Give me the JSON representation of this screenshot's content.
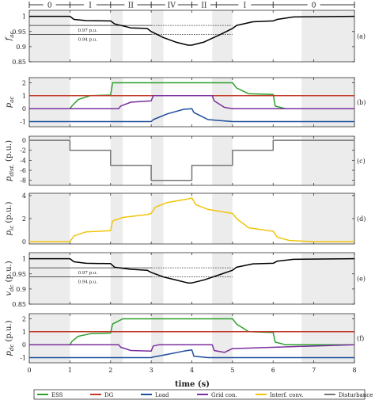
{
  "figure": {
    "xlabel": "time (s)",
    "xticks": [
      "0",
      "1",
      "2",
      "3",
      "4",
      "5",
      "6",
      "7",
      "8"
    ],
    "xlim": [
      0,
      8
    ],
    "mode_strip": {
      "labels": [
        "0",
        "I",
        "II",
        "IV",
        "II",
        "I",
        "0"
      ],
      "colors": [
        "#333333",
        "#2ca02c",
        "#5b3aa0",
        "#5b3aa0",
        "#5b3aa0",
        "#2ca02c",
        "#333333"
      ]
    },
    "legend": [
      {
        "name": "ESS",
        "color": "#2ca02c"
      },
      {
        "name": "DG",
        "color": "#c0392b"
      },
      {
        "name": "Load",
        "color": "#1f4e9c"
      },
      {
        "name": "Grid con.",
        "color": "#7b2fa0"
      },
      {
        "name": "Interf. conv.",
        "color": "#f1c40f"
      },
      {
        "name": "Disturbance",
        "color": "#777777"
      }
    ]
  },
  "chart_data": [
    {
      "type": "line",
      "panel_tag": "(a)",
      "ylabel": "f_ac",
      "ylabel_sub": "ac",
      "ylabel_main": "f",
      "ylim": [
        0.85,
        1.02
      ],
      "yticks": [
        "1",
        "0.95",
        "0.9",
        "0.85"
      ],
      "ref_lines": [
        {
          "value": 0.97,
          "label": "0.97 p.u."
        },
        {
          "value": 0.94,
          "label": "0.94 p.u."
        }
      ],
      "series": [
        {
          "color": "#000000",
          "x": [
            0,
            1,
            1.1,
            1.4,
            1.9,
            2.0,
            2.1,
            2.5,
            2.9,
            3.0,
            3.3,
            3.6,
            3.9,
            4.0,
            4.3,
            4.7,
            5.0,
            5.1,
            5.5,
            6.0,
            6.1,
            6.5,
            8
          ],
          "y": [
            1,
            1,
            0.99,
            0.986,
            0.985,
            0.985,
            0.975,
            0.962,
            0.96,
            0.95,
            0.93,
            0.915,
            0.905,
            0.905,
            0.915,
            0.94,
            0.96,
            0.97,
            0.982,
            0.985,
            0.99,
            0.998,
            1
          ]
        }
      ]
    },
    {
      "type": "line",
      "panel_tag": "(b)",
      "ylabel_main": "p",
      "ylabel_sub": "ac",
      "ylim": [
        -1.4,
        2.4
      ],
      "yticks": [
        "2",
        "1",
        "0",
        "-1"
      ],
      "series": [
        {
          "name": "ESS",
          "color": "#2ca02c",
          "x": [
            0,
            1,
            1.05,
            1.2,
            1.5,
            2.0,
            2.05,
            2.2,
            5.0,
            5.1,
            5.4,
            6.0,
            6.05,
            6.3,
            8
          ],
          "y": [
            0,
            0,
            0.2,
            0.7,
            1.0,
            1.05,
            2,
            2,
            2,
            1.6,
            1.15,
            1.1,
            0.2,
            0,
            0
          ]
        },
        {
          "name": "DG",
          "color": "#c0392b",
          "x": [
            0,
            8
          ],
          "y": [
            1,
            1
          ]
        },
        {
          "name": "Grid con.",
          "color": "#7b2fa0",
          "x": [
            0,
            2.2,
            2.25,
            2.5,
            3.0,
            3.05,
            3.2,
            4.5,
            4.55,
            4.8,
            5.0,
            8
          ],
          "y": [
            0,
            0,
            0.2,
            0.5,
            0.6,
            1,
            1,
            1,
            0.6,
            0.1,
            0,
            0
          ]
        },
        {
          "name": "Load",
          "color": "#1f4e9c",
          "x": [
            0,
            3.0,
            3.05,
            3.4,
            3.8,
            4.0,
            4.05,
            4.4,
            5.0,
            8
          ],
          "y": [
            -1,
            -1,
            -0.85,
            -0.4,
            -0.05,
            0,
            -0.3,
            -0.85,
            -1,
            -1
          ]
        }
      ]
    },
    {
      "type": "line",
      "panel_tag": "(c)",
      "ylabel_main": "p",
      "ylabel_sub": "dist.",
      "ylabel_unit": "(p.u.)",
      "ylim": [
        -9,
        0.8
      ],
      "yticks": [
        "0",
        "-2",
        "-4",
        "-6",
        "-8"
      ],
      "series": [
        {
          "name": "Disturbance",
          "color": "#777777",
          "x": [
            0,
            1,
            1,
            2,
            2,
            3,
            3,
            4,
            4,
            5,
            5,
            6,
            6,
            8
          ],
          "y": [
            0,
            0,
            -2,
            -2,
            -5,
            -5,
            -8,
            -8,
            -5,
            -5,
            -2,
            -2,
            0,
            0
          ]
        }
      ]
    },
    {
      "type": "line",
      "panel_tag": "(d)",
      "ylabel_main": "p",
      "ylabel_sub": "ic",
      "ylabel_unit": "(p.u.)",
      "ylim": [
        -0.2,
        4.2
      ],
      "yticks": [
        "4",
        "2",
        "0"
      ],
      "series": [
        {
          "name": "Interf. conv.",
          "color": "#f1c40f",
          "x": [
            0,
            1,
            1.1,
            1.4,
            2.0,
            2.05,
            2.3,
            2.9,
            3.0,
            3.1,
            3.4,
            3.9,
            4.0,
            4.1,
            4.4,
            5.0,
            5.1,
            5.4,
            6.0,
            6.1,
            6.4,
            7,
            8
          ],
          "y": [
            0,
            0,
            0.5,
            0.85,
            0.95,
            1.8,
            2.1,
            2.35,
            2.45,
            3.0,
            3.4,
            3.7,
            3.8,
            3.2,
            2.8,
            2.45,
            2.0,
            1.2,
            0.9,
            0.4,
            0.1,
            0,
            0
          ]
        }
      ]
    },
    {
      "type": "line",
      "panel_tag": "(e)",
      "ylabel_main": "v",
      "ylabel_sub": "dc",
      "ylabel_unit": "(p.u.)",
      "ylim": [
        0.85,
        1.02
      ],
      "yticks": [
        "1",
        "0.95",
        "0.9",
        "0.85"
      ],
      "ref_lines": [
        {
          "value": 0.97,
          "label": "0.97 p.u."
        },
        {
          "value": 0.94,
          "label": "0.94 p.u."
        }
      ],
      "series": [
        {
          "color": "#000000",
          "x": [
            0,
            1,
            1.1,
            1.4,
            1.9,
            2.0,
            2.1,
            2.5,
            2.9,
            3.0,
            3.3,
            3.6,
            3.9,
            4.0,
            4.3,
            4.7,
            5.0,
            5.1,
            5.5,
            6.0,
            6.1,
            6.5,
            8
          ],
          "y": [
            1,
            1,
            0.99,
            0.985,
            0.984,
            0.984,
            0.972,
            0.965,
            0.962,
            0.955,
            0.94,
            0.93,
            0.92,
            0.92,
            0.93,
            0.948,
            0.962,
            0.972,
            0.983,
            0.985,
            0.992,
            0.998,
            1
          ]
        }
      ]
    },
    {
      "type": "line",
      "panel_tag": "(f)",
      "ylabel_main": "p",
      "ylabel_sub": "dc",
      "ylabel_unit": "(p.u.)",
      "ylim": [
        -1.4,
        2.4
      ],
      "yticks": [
        "2",
        "1",
        "0",
        "-1"
      ],
      "series": [
        {
          "name": "ESS",
          "color": "#2ca02c",
          "x": [
            0,
            1,
            1.05,
            1.2,
            1.5,
            2.0,
            2.05,
            2.3,
            5.0,
            5.1,
            5.4,
            6.0,
            6.05,
            6.3,
            8
          ],
          "y": [
            0,
            0,
            0.25,
            0.65,
            0.85,
            0.9,
            1.6,
            2,
            2,
            1.6,
            1.0,
            0.95,
            0.2,
            0,
            0
          ]
        },
        {
          "name": "DG",
          "color": "#c0392b",
          "x": [
            0,
            8
          ],
          "y": [
            1,
            1
          ]
        },
        {
          "name": "Grid con.",
          "color": "#7b2fa0",
          "x": [
            0,
            2.2,
            2.25,
            2.5,
            3.0,
            3.05,
            3.2,
            4.5,
            4.55,
            4.8,
            5.0,
            8
          ],
          "y": [
            0,
            0,
            -0.2,
            -0.45,
            -0.5,
            -0.1,
            0,
            0,
            -0.45,
            -0.6,
            -0.3,
            0
          ]
        },
        {
          "name": "Load",
          "color": "#1f4e9c",
          "x": [
            0,
            3.0,
            3.05,
            3.4,
            3.8,
            4.0,
            4.05,
            4.4,
            5.0,
            8
          ],
          "y": [
            -1,
            -1,
            -0.95,
            -0.75,
            -0.5,
            -0.4,
            -0.9,
            -1,
            -1,
            -1
          ]
        }
      ]
    }
  ]
}
